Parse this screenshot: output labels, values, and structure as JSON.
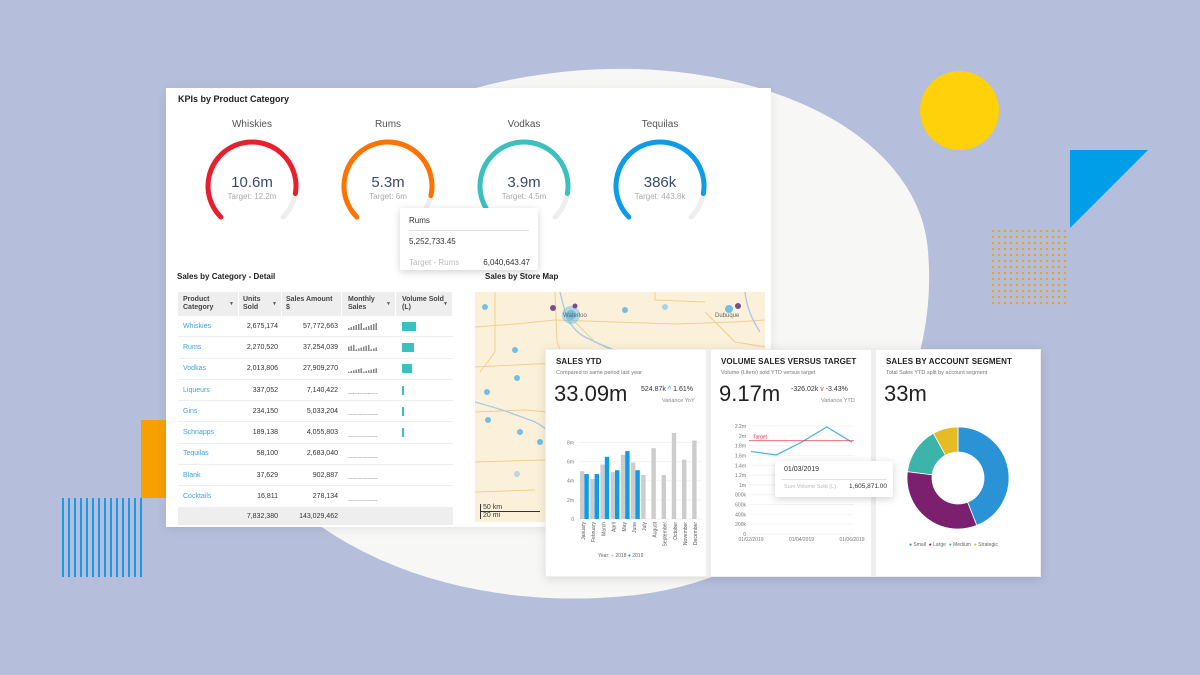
{
  "kpis": {
    "title": "KPIs by Product Category",
    "gauges": [
      {
        "label": "Whiskies",
        "value": "10.6m",
        "target": "Target: 12.2m",
        "color": "#e8202e",
        "pct": 0.87
      },
      {
        "label": "Rums",
        "value": "5.3m",
        "target": "Target: 6m",
        "color": "#ff7300",
        "pct": 0.88
      },
      {
        "label": "Vodkas",
        "value": "3.9m",
        "target": "Target: 4.5m",
        "color": "#3cbfbf",
        "pct": 0.87
      },
      {
        "label": "Tequilas",
        "value": "386k",
        "target": "Target: 443.8k",
        "color": "#0f9be8",
        "pct": 0.87
      }
    ],
    "tooltip": {
      "title": "Rums",
      "value": "5,252,733.45",
      "target_label": "Target - Rums",
      "target_value": "6,040,643.47"
    }
  },
  "detail": {
    "title": "Sales by Category - Detail",
    "columns": [
      "Product Category",
      "Units Sold",
      "Sales Amount $",
      "Monthly Sales",
      "Volume Sold (L)"
    ],
    "rows": [
      {
        "category": "Whiskies",
        "units": "2,675,174",
        "sales": "57,772,663",
        "volume_pct": 100
      },
      {
        "category": "Rums",
        "units": "2,270,520",
        "sales": "37,254,039",
        "volume_pct": 88
      },
      {
        "category": "Vodkas",
        "units": "2,013,806",
        "sales": "27,909,270",
        "volume_pct": 68
      },
      {
        "category": "Liqueurs",
        "units": "337,052",
        "sales": "7,140,422",
        "volume_pct": 10
      },
      {
        "category": "Gins",
        "units": "234,150",
        "sales": "5,033,204",
        "volume_pct": 8
      },
      {
        "category": "Schnapps",
        "units": "189,138",
        "sales": "4,055,803",
        "volume_pct": 5
      },
      {
        "category": "Tequilas",
        "units": "58,100",
        "sales": "2,683,040",
        "volume_pct": 0
      },
      {
        "category": "Blank",
        "units": "37,629",
        "sales": "902,887",
        "volume_pct": 0
      },
      {
        "category": "Cocktails",
        "units": "16,811",
        "sales": "278,134",
        "volume_pct": 0
      }
    ],
    "totals": {
      "units": "7,832,380",
      "sales": "143,029,462"
    }
  },
  "map": {
    "title": "Sales by Store Map",
    "city_labels": [
      "Waterloo",
      "Dubuque"
    ],
    "scale_km": "50 km",
    "scale_mi": "20 mi"
  },
  "sales_ytd": {
    "title": "SALES YTD",
    "subtitle": "Compared to same period last year",
    "value": "33.09m",
    "delta": "524.87k",
    "delta_pct": "1.61%",
    "variance_label": "Variance YoY",
    "legend_prefix": "Year:",
    "legend_2018": "2018",
    "legend_2019": "2019"
  },
  "volume_vs_target": {
    "title": "VOLUME SALES VERSUS TARGET",
    "subtitle": "Volume (Liters) sold YTD versus target",
    "value": "9.17m",
    "delta": "-326.02k",
    "delta_pct": "-3.43%",
    "variance_label": "Variance YTD",
    "target_label": "Target",
    "tooltip": {
      "date": "01/03/2019",
      "label": "Sum Volume Sold (L)",
      "value": "1,605,871.00"
    }
  },
  "segment": {
    "title": "SALES BY ACCOUNT SEGMENT",
    "subtitle": "Total Sales YTD split by account segment",
    "value": "33m",
    "legend": [
      "Small",
      "Large",
      "Medium",
      "Strategic"
    ]
  },
  "chart_data": [
    {
      "type": "bar",
      "title": "SALES YTD",
      "categories": [
        "January",
        "February",
        "March",
        "April",
        "May",
        "June",
        "July",
        "August",
        "September",
        "October",
        "November",
        "December"
      ],
      "series": [
        {
          "name": "2018",
          "color": "#cccccc",
          "values": [
            5.0,
            4.2,
            5.7,
            4.9,
            6.7,
            5.9,
            4.6,
            7.4,
            4.6,
            9.0,
            6.2,
            8.2
          ]
        },
        {
          "name": "2019",
          "color": "#0f9be8",
          "values": [
            4.7,
            4.7,
            6.5,
            5.1,
            7.1,
            5.1,
            null,
            null,
            null,
            null,
            null,
            null
          ]
        }
      ],
      "yticks": [
        "0",
        "2m",
        "4m",
        "6m",
        "8m"
      ],
      "ylim": [
        0,
        9.2
      ],
      "legend_position": "bottom"
    },
    {
      "type": "line",
      "title": "VOLUME SALES VERSUS TARGET",
      "x": [
        "01/02/2019",
        "01/03/2019",
        "01/04/2019",
        "01/05/2019",
        "01/06/2019"
      ],
      "xticks": [
        "01/02/2019",
        "01/04/2019",
        "01/06/2019"
      ],
      "series": [
        {
          "name": "Sum Volume Sold (L)",
          "color": "#4fb0ea",
          "values": [
            1.68,
            1.61,
            1.87,
            2.18,
            1.87
          ]
        },
        {
          "name": "Target",
          "color": "#e63946",
          "values": [
            1.9,
            1.9,
            1.9,
            1.9,
            1.9
          ]
        }
      ],
      "yticks": [
        "0",
        "200k",
        "400k",
        "600k",
        "800k",
        "1m",
        "1.2m",
        "1.4m",
        "1.6m",
        "1.8m",
        "2m",
        "2.2m"
      ],
      "ylim": [
        0,
        2.2
      ]
    },
    {
      "type": "pie",
      "title": "SALES BY ACCOUNT SEGMENT",
      "labels": [
        "Small",
        "Large",
        "Medium",
        "Strategic"
      ],
      "values": [
        44,
        33,
        15,
        8
      ],
      "colors": [
        "#2a93d5",
        "#7b1f6f",
        "#3bb5aa",
        "#e6bc24"
      ]
    }
  ]
}
